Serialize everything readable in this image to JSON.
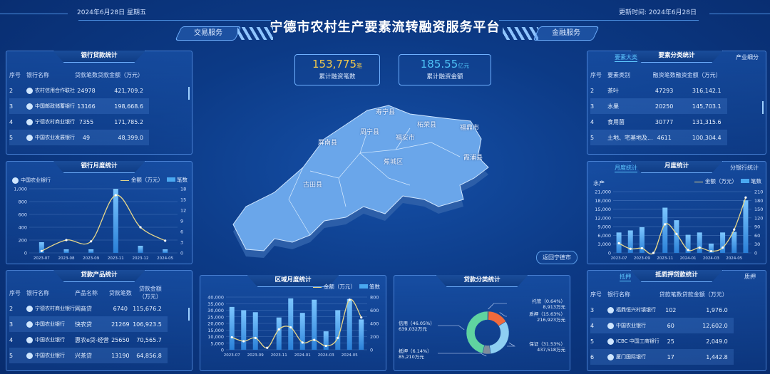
{
  "header": {
    "date": "2024年6月28日  星期五",
    "title": "宁德市农村生产要素流转融资服务平台",
    "update_label": "更新时间:",
    "update_value": "2024年6月28日",
    "nav_left": "交易服务",
    "nav_right": "金融服务"
  },
  "stats": [
    {
      "value": "153,775",
      "unit": "笔",
      "label": "累计融资笔数",
      "color": "#f2c94c"
    },
    {
      "value": "185.55",
      "unit": "亿元",
      "label": "累计融资金额",
      "color": "#4fc3f7"
    }
  ],
  "bank_loans": {
    "title": "银行贷款统计",
    "headers": [
      "序号",
      "银行名称",
      "贷款笔数",
      "贷款金额（万元）"
    ],
    "rows": [
      [
        "2",
        "农村信用合作联社",
        "24978",
        "421,709.2"
      ],
      [
        "3",
        "中国邮政储蓄银行",
        "13166",
        "198,668.6"
      ],
      [
        "4",
        "宁德农村商业银行",
        "7355",
        "171,785.2"
      ],
      [
        "5",
        "中国农业发展银行",
        "49",
        "48,399.0"
      ]
    ]
  },
  "element_stats": {
    "title": "要素分类统计",
    "tab_left": "要素大类",
    "tab_right": "产业细分",
    "headers": [
      "序号",
      "要素类别",
      "融资笔数",
      "融资金额（万元）"
    ],
    "rows": [
      [
        "2",
        "茶叶",
        "47293",
        "316,142.1"
      ],
      [
        "3",
        "水果",
        "20250",
        "145,703.1"
      ],
      [
        "4",
        "食用菌",
        "30777",
        "131,315.6"
      ],
      [
        "5",
        "土地、宅基地及...",
        "4611",
        "100,304.4"
      ]
    ]
  },
  "product_stats": {
    "title": "贷款产品统计",
    "headers": [
      "序号",
      "银行名称",
      "产品名称",
      "贷款笔数",
      "贷款金额（万元）"
    ],
    "rows": [
      [
        "2",
        "宁德农村商业银行",
        "网商贷",
        "6740",
        "115,676.2"
      ],
      [
        "3",
        "中国农业银行",
        "快农贷",
        "21269",
        "106,923.5"
      ],
      [
        "4",
        "中国农业银行",
        "惠农e贷-经营",
        "25650",
        "70,565.7"
      ],
      [
        "5",
        "中国农业银行",
        "兴茶贷",
        "13190",
        "64,856.8"
      ]
    ]
  },
  "pledge_stats": {
    "title": "抵质押贷款统计",
    "tab_left": "抵押",
    "tab_right": "质押",
    "headers": [
      "序号",
      "银行名称",
      "贷款笔数",
      "贷款金额（万元）"
    ],
    "rows": [
      [
        "3",
        "福鼎恒兴村镇银行",
        "102",
        "1,976.0"
      ],
      [
        "4",
        "中国农业银行",
        "60",
        "12,602.0"
      ],
      [
        "5",
        "ICBC 中国工商银行",
        "25",
        "2,049.0"
      ],
      [
        "6",
        "厦门国际银行",
        "17",
        "1,442.8"
      ]
    ]
  },
  "map": {
    "labels": [
      "寿宁县",
      "柘荣县",
      "福鼎市",
      "周宁县",
      "福安市",
      "屏南县",
      "霞浦县",
      "蕉城区",
      "古田县"
    ],
    "back_button": "返回宁德市",
    "fill": "#6aa6ea"
  },
  "chart_data": [
    {
      "id": "bank-monthly",
      "type": "bar+line",
      "title": "银行月度统计",
      "bank": "中国农业银行",
      "categories": [
        "2023-07",
        "2023-08",
        "2023-09",
        "2023-11",
        "2023-12",
        "2024-05"
      ],
      "tick_labels": [
        "2023-07",
        "2023-08",
        "2023-09",
        "2023-11",
        "2023-12",
        "2024-05"
      ],
      "series": [
        {
          "name": "金额（万元）",
          "type": "line",
          "axis": "left",
          "values": [
            30,
            200,
            180,
            900,
            400,
            190
          ]
        },
        {
          "name": "笔数",
          "type": "bar",
          "axis": "right",
          "values": [
            3,
            1,
            1,
            18,
            2,
            1
          ]
        }
      ],
      "ylim_left": [
        0,
        1000
      ],
      "yticks_left": [
        "0",
        "200",
        "400",
        "600",
        "800",
        "1,000"
      ],
      "ylim_right": [
        0,
        18
      ],
      "yticks_right": [
        "0",
        "3",
        "6",
        "9",
        "12",
        "15",
        "18"
      ],
      "grid": true,
      "legend": "top-right"
    },
    {
      "id": "element-monthly",
      "type": "bar+line",
      "title": "月度统计",
      "tab_left": "月度统计",
      "tab_right": "分银行统计",
      "category_label": "水产",
      "categories": [
        "2023-07",
        "2023-08",
        "2023-09",
        "2023-10",
        "2023-11",
        "2023-12",
        "2024-01",
        "2024-02",
        "2024-03",
        "2024-04",
        "2024-05",
        "2024-06"
      ],
      "tick_labels": [
        "2023-07",
        "",
        "2023-09",
        "",
        "2023-11",
        "",
        "2024-01",
        "",
        "2024-03",
        "",
        "2024-05",
        ""
      ],
      "series": [
        {
          "name": "金额（万元）",
          "type": "line",
          "axis": "left",
          "values": [
            3300,
            1400,
            1600,
            0,
            9800,
            6500,
            1000,
            1800,
            600,
            1800,
            8000,
            19000
          ]
        },
        {
          "name": "笔数",
          "type": "bar",
          "axis": "right",
          "values": [
            70,
            77,
            88,
            0,
            155,
            112,
            62,
            70,
            32,
            70,
            72,
            180
          ]
        }
      ],
      "ylim_left": [
        0,
        21000
      ],
      "yticks_left": [
        "0",
        "3,000",
        "6,000",
        "9,000",
        "12,000",
        "15,000",
        "18,000",
        "21,000"
      ],
      "ylim_right": [
        0,
        210
      ],
      "yticks_right": [
        "0",
        "30",
        "60",
        "90",
        "120",
        "150",
        "180",
        "210"
      ],
      "grid": true,
      "legend": "top-right"
    },
    {
      "id": "region-monthly",
      "type": "bar+line",
      "title": "区域月度统计",
      "categories": [
        "2023-07",
        "2023-08",
        "2023-09",
        "2023-10",
        "2023-11",
        "2023-12",
        "2024-01",
        "2024-02",
        "2024-03",
        "2024-04",
        "2024-05",
        "2024-06"
      ],
      "tick_labels": [
        "2023-07",
        "",
        "2023-09",
        "",
        "2023-11",
        "",
        "2024-01",
        "",
        "2024-03",
        "",
        "2024-05",
        ""
      ],
      "series": [
        {
          "name": "金额（万元）",
          "type": "line",
          "axis": "left",
          "values": [
            9500,
            6500,
            9000,
            1500,
            15500,
            17000,
            5500,
            7500,
            3000,
            9000,
            38000,
            24500
          ]
        },
        {
          "name": "笔数",
          "type": "bar",
          "axis": "right",
          "values": [
            650,
            600,
            570,
            0,
            490,
            780,
            560,
            760,
            280,
            600,
            770,
            460
          ]
        }
      ],
      "ylim_left": [
        0,
        40000
      ],
      "yticks_left": [
        "0",
        "5,000",
        "10,000",
        "15,000",
        "20,000",
        "25,000",
        "30,000",
        "35,000",
        "40,000"
      ],
      "ylim_right": [
        0,
        800
      ],
      "yticks_right": [
        "0",
        "200",
        "400",
        "600",
        "800"
      ],
      "grid": true,
      "legend": "top-right"
    },
    {
      "id": "loan-category",
      "type": "pie",
      "title": "贷款分类统计",
      "slices": [
        {
          "label": "托管",
          "percent": 0.64,
          "amount": "8,913万元",
          "color": "#f2c94c"
        },
        {
          "label": "质押",
          "percent": 15.63,
          "amount": "216,923万元",
          "color": "#f06a3c"
        },
        {
          "label": "保证",
          "percent": 31.53,
          "amount": "437,518万元",
          "color": "#8ecff2"
        },
        {
          "label": "抵押",
          "percent": 6.14,
          "amount": "85,210万元",
          "color": "#7f8d9c"
        },
        {
          "label": "信用",
          "percent": 46.05,
          "amount": "639,032万元",
          "color": "#5fd3a0"
        }
      ]
    }
  ],
  "colors": {
    "line": "#e8d88a",
    "bar": "#4aa8f0",
    "accent": "#5fc8ff"
  }
}
